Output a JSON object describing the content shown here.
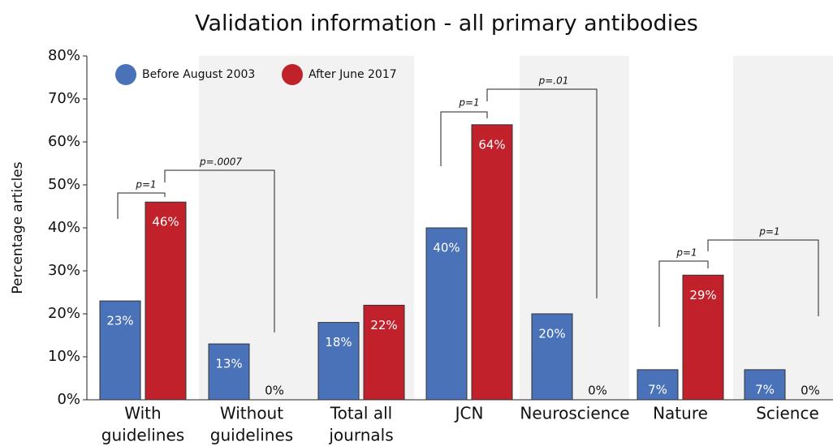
{
  "chart_data": {
    "type": "bar",
    "title": "Validation information - all primary antibodies",
    "y_label": "Percentage articles",
    "categories": [
      [
        "With",
        "guidelines"
      ],
      [
        "Without",
        "guidelines"
      ],
      [
        "Total all",
        "journals"
      ],
      [
        "JCN"
      ],
      [
        "Neuroscience"
      ],
      [
        "Nature"
      ],
      [
        "Science"
      ]
    ],
    "series": [
      {
        "name": "Before August 2003",
        "color": "#4a72b9",
        "values": [
          23,
          13,
          18,
          40,
          20,
          7,
          7
        ],
        "value_labels": [
          "23%",
          "13%",
          "18%",
          "40%",
          "20%",
          "7%",
          "7%"
        ]
      },
      {
        "name": "After June 2017",
        "color": "#c1212b",
        "values": [
          46,
          0,
          22,
          64,
          0,
          29,
          0
        ],
        "value_labels": [
          "46%",
          "0%",
          "22%",
          "64%",
          "0%",
          "29%",
          "0%"
        ]
      }
    ],
    "ylim": [
      0,
      80
    ],
    "yticks": [
      {
        "value": 0,
        "label": "0%"
      },
      {
        "value": 10,
        "label": "10%"
      },
      {
        "value": 20,
        "label": "20%"
      },
      {
        "value": 30,
        "label": "30%"
      },
      {
        "value": 40,
        "label": "40%"
      },
      {
        "value": 50,
        "label": "50%"
      },
      {
        "value": 60,
        "label": "60%"
      },
      {
        "value": 70,
        "label": "70%"
      },
      {
        "value": 80,
        "label": "80%"
      }
    ],
    "annotations": [
      "p=1",
      "p=.0007",
      "p=1",
      "p=.01",
      "p=1",
      "p=1"
    ],
    "legend": "top-left"
  }
}
